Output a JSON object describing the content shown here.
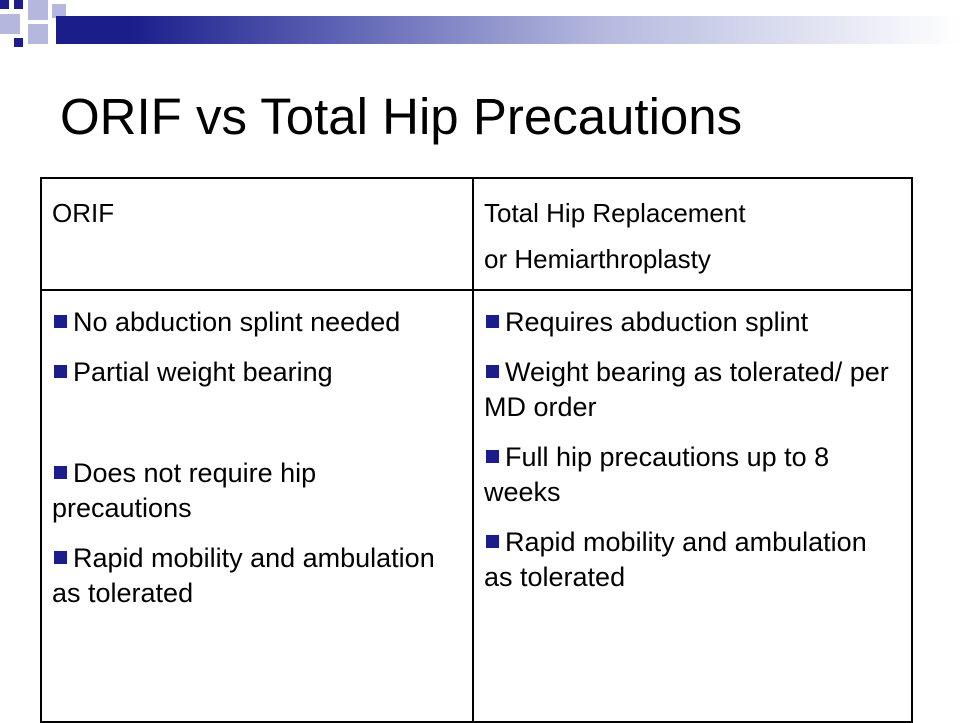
{
  "slide": {
    "title": "ORIF vs Total Hip Precautions"
  },
  "table": {
    "header": {
      "left": "ORIF",
      "right_line1": "Total Hip Replacement",
      "right_line2": "or Hemiarthroplasty"
    },
    "left_bullets": [
      "No abduction splint needed",
      "Partial weight bearing",
      "Does not require hip precautions",
      "Rapid mobility and ambulation as tolerated"
    ],
    "right_bullets": [
      "Requires abduction splint",
      "Weight bearing as tolerated/ per MD order",
      "Full hip precautions up to 8 weeks",
      "Rapid mobility and ambulation as tolerated"
    ]
  },
  "colors": {
    "accent_navy": "#1a1d8a",
    "accent_light": "#b4b8de",
    "bullet": "#1a1d8a"
  }
}
